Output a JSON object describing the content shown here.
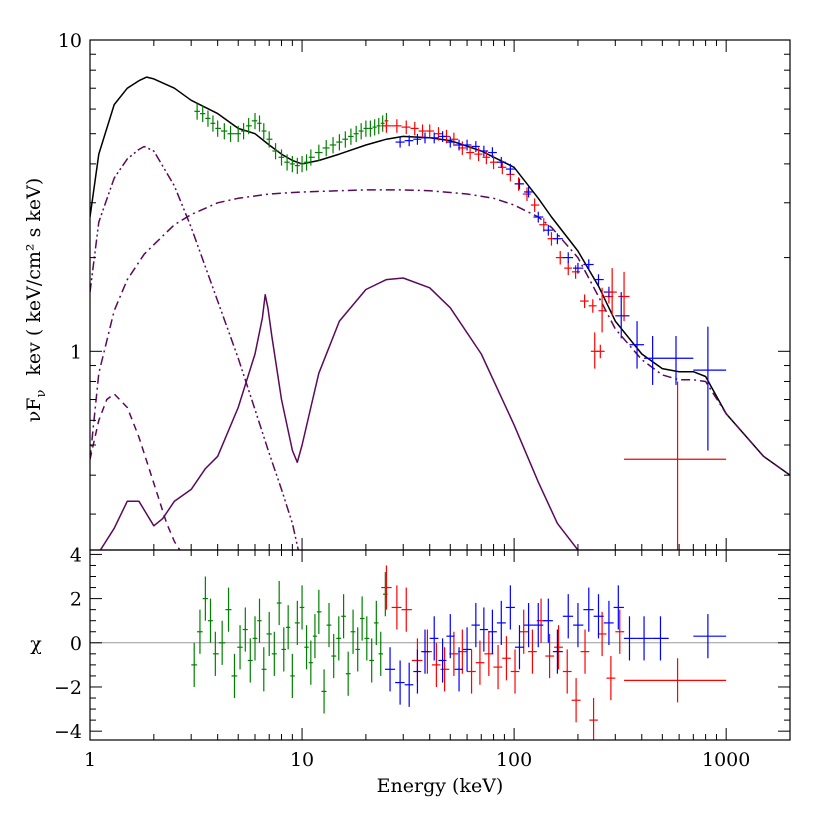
{
  "chart_data": [
    {
      "type": "line",
      "panel": "spectrum",
      "xscale": "log",
      "yscale": "log",
      "xlim": [
        1,
        2000
      ],
      "ylim": [
        0.23,
        10
      ],
      "ylabel": "νF_ν   kev ( keV/cm² s keV)",
      "ylabel_parts": {
        "nu": "ν",
        "f": "F",
        "sub": "ν",
        "rest": "kev ( keV/cm² s keV)"
      },
      "y_ticks": [
        1,
        10
      ],
      "y_tick_labels": [
        "1",
        "10"
      ],
      "colors": {
        "data_green": "#008000",
        "data_red": "#ff0000",
        "data_blue": "#0000ff",
        "model_total": "#000000",
        "component": "#5a0a5a"
      },
      "model_curves": [
        {
          "style": "solid",
          "color": "#000000",
          "x": [
            1,
            1.1,
            1.3,
            1.5,
            1.7,
            1.85,
            2.0,
            2.5,
            3.0,
            4.0,
            5.0,
            6.0,
            7.0,
            8.0,
            9.0,
            10,
            12,
            15,
            20,
            25,
            30,
            40,
            50,
            70,
            100,
            130,
            150,
            200,
            250,
            300,
            400,
            500,
            600,
            700,
            800,
            1000,
            1500,
            2000
          ],
          "y": [
            2.7,
            4.3,
            6.2,
            7.0,
            7.4,
            7.6,
            7.5,
            7.0,
            6.4,
            5.8,
            5.2,
            5.0,
            4.6,
            4.3,
            4.1,
            4.0,
            4.1,
            4.3,
            4.6,
            4.8,
            4.9,
            4.85,
            4.75,
            4.4,
            3.9,
            3.1,
            2.7,
            2.1,
            1.62,
            1.25,
            0.98,
            0.88,
            0.86,
            0.86,
            0.83,
            0.63,
            0.46,
            0.4
          ]
        },
        {
          "style": "dash-dot-dot",
          "color": "#5a0a5a",
          "x": [
            1,
            1.1,
            1.3,
            1.5,
            1.7,
            1.8,
            2.0,
            2.5,
            3.0,
            4.0,
            5.0,
            6.0,
            7.0,
            8.0,
            9.0,
            9.6
          ],
          "y": [
            1.55,
            2.6,
            3.6,
            4.15,
            4.45,
            4.55,
            4.4,
            3.4,
            2.5,
            1.45,
            0.95,
            0.65,
            0.47,
            0.36,
            0.28,
            0.23
          ]
        },
        {
          "style": "dash-dot",
          "color": "#5a0a5a",
          "x": [
            1,
            1.1,
            1.3,
            1.5,
            1.8,
            2.0,
            2.5,
            3.0,
            4.0,
            5.0,
            7.0,
            10,
            15,
            20,
            30,
            40,
            60,
            80,
            100,
            130,
            150,
            200,
            250,
            300,
            400,
            500,
            600,
            700,
            800,
            1000,
            1500,
            2000
          ],
          "y": [
            0.45,
            0.85,
            1.35,
            1.7,
            2.05,
            2.2,
            2.55,
            2.75,
            3.0,
            3.1,
            3.2,
            3.25,
            3.28,
            3.3,
            3.3,
            3.28,
            3.2,
            3.1,
            2.95,
            2.7,
            2.5,
            2.0,
            1.5,
            1.18,
            0.94,
            0.84,
            0.81,
            0.81,
            0.8,
            0.63,
            0.46,
            0.4
          ]
        },
        {
          "style": "dashed",
          "color": "#5a0a5a",
          "x": [
            1,
            1.1,
            1.2,
            1.3,
            1.5,
            1.7,
            1.9,
            2.1,
            2.3,
            2.5,
            2.65
          ],
          "y": [
            0.45,
            0.6,
            0.7,
            0.73,
            0.66,
            0.53,
            0.42,
            0.34,
            0.28,
            0.245,
            0.23
          ]
        },
        {
          "style": "solid",
          "color": "#5a0a5a",
          "x": [
            1.12,
            1.3,
            1.5,
            1.7,
            1.85,
            2.0,
            2.2,
            2.5,
            3.0,
            3.5,
            4.0,
            5.0,
            6.0,
            6.5,
            6.7,
            6.9,
            7.2,
            8.0,
            9.0,
            9.5,
            10,
            11,
            12,
            15,
            20,
            25,
            30,
            40,
            50,
            70,
            100,
            130,
            160,
            200
          ],
          "y": [
            0.23,
            0.27,
            0.33,
            0.33,
            0.3,
            0.275,
            0.29,
            0.33,
            0.36,
            0.42,
            0.46,
            0.66,
            0.98,
            1.28,
            1.52,
            1.38,
            1.12,
            0.7,
            0.48,
            0.44,
            0.5,
            0.66,
            0.85,
            1.25,
            1.58,
            1.7,
            1.72,
            1.6,
            1.38,
            0.98,
            0.58,
            0.38,
            0.28,
            0.23
          ]
        }
      ],
      "data_series": [
        {
          "color": "#008000",
          "x": [
            3.2,
            3.4,
            3.6,
            3.8,
            4.0,
            4.3,
            4.6,
            5.0,
            5.3,
            5.6,
            6.0,
            6.3,
            6.6,
            7.0,
            7.5,
            8.0,
            8.5,
            9.0,
            9.5,
            10,
            10.5,
            11,
            12,
            13,
            14,
            15,
            16,
            17,
            18,
            19,
            20,
            21,
            22,
            23,
            24,
            25
          ],
          "y": [
            5.9,
            5.8,
            5.6,
            5.4,
            5.2,
            5.1,
            5.0,
            5.0,
            5.1,
            5.3,
            5.5,
            5.4,
            5.1,
            4.8,
            4.4,
            4.2,
            4.05,
            4.0,
            3.95,
            4.0,
            4.05,
            4.2,
            4.35,
            4.5,
            4.6,
            4.7,
            4.8,
            4.9,
            5.0,
            5.1,
            5.2,
            5.2,
            5.25,
            5.3,
            5.4,
            5.5
          ],
          "ylo_frac": 0.06
        },
        {
          "color": "#ff0000",
          "x": [
            25,
            28,
            31,
            34,
            37,
            40,
            44,
            48,
            52,
            57,
            62,
            68,
            74,
            80,
            88,
            96,
            105,
            115,
            125,
            138,
            150,
            165,
            180,
            195,
            215,
            235,
            255,
            280
          ],
          "y": [
            5.3,
            5.3,
            5.25,
            5.2,
            5.1,
            5.1,
            5.0,
            4.9,
            4.8,
            4.5,
            4.35,
            4.3,
            4.2,
            4.05,
            3.9,
            3.7,
            3.45,
            3.2,
            2.95,
            2.55,
            2.3,
            2.0,
            1.85,
            1.8,
            1.45,
            1.4,
            1.0,
            1.5
          ],
          "ylo_frac": 0.05
        },
        {
          "color": "#0000ff",
          "x": [
            29,
            32,
            35,
            38,
            42,
            46,
            50,
            55,
            60,
            66,
            72,
            79,
            87,
            96,
            106,
            117,
            130,
            145,
            160,
            180,
            200,
            225,
            250,
            280
          ],
          "y": [
            4.7,
            4.75,
            4.8,
            4.85,
            4.85,
            4.9,
            4.7,
            4.6,
            4.6,
            4.55,
            4.4,
            4.35,
            4.05,
            3.85,
            3.45,
            3.25,
            2.7,
            2.45,
            2.3,
            2.0,
            1.85,
            1.9,
            1.7,
            1.55
          ],
          "ylo_frac": 0.04
        },
        {
          "color": "#ff0000",
          "x": [
            240,
            260,
            290,
            330,
            590
          ],
          "y": [
            1.0,
            1.35,
            1.55,
            1.5,
            0.45
          ],
          "xlo": [
            230,
            250,
            275,
            310,
            330
          ],
          "xhi": [
            250,
            270,
            305,
            350,
            1000
          ],
          "ylo": [
            0.88,
            1.15,
            1.3,
            1.25,
            0.23
          ],
          "yhi": [
            1.15,
            1.6,
            1.85,
            1.8,
            0.8
          ]
        },
        {
          "color": "#0000ff",
          "x": [
            320,
            380,
            450,
            580,
            820
          ],
          "y": [
            1.3,
            1.05,
            0.95,
            0.95,
            0.87
          ],
          "xlo": [
            300,
            350,
            410,
            490,
            700
          ],
          "xhi": [
            350,
            410,
            490,
            700,
            1000
          ],
          "ylo": [
            1.1,
            0.88,
            0.78,
            0.78,
            0.48
          ],
          "yhi": [
            1.55,
            1.25,
            1.12,
            1.12,
            1.2
          ]
        }
      ]
    },
    {
      "type": "scatter",
      "panel": "residuals",
      "xscale": "log",
      "xlim": [
        1,
        2000
      ],
      "ylim": [
        -4.4,
        4.2
      ],
      "xlabel": "Energy (keV)",
      "ylabel": "χ",
      "x_ticks": [
        1,
        10,
        100,
        1000
      ],
      "x_tick_labels": [
        "1",
        "10",
        "100",
        "1000"
      ],
      "y_ticks": [
        -4,
        -2,
        0,
        2,
        4
      ],
      "y_tick_labels": [
        "−4",
        "−2",
        "0",
        "2",
        "4"
      ],
      "zero_line": true,
      "colors": {
        "data_green": "#008000",
        "data_red": "#ff0000",
        "data_blue": "#0000ff",
        "zero_line": "#999999"
      },
      "series": [
        {
          "color": "#008000",
          "x": [
            3.1,
            3.3,
            3.5,
            3.7,
            3.9,
            4.2,
            4.5,
            4.8,
            5.1,
            5.4,
            5.7,
            6.0,
            6.3,
            6.6,
            7.0,
            7.4,
            7.8,
            8.2,
            8.6,
            9.0,
            9.5,
            10,
            10.5,
            11,
            11.5,
            12,
            12.7,
            13.4,
            14.1,
            14.9,
            15.7,
            16.5,
            17.4,
            18.3,
            19.2,
            20.2,
            21.3,
            22.4,
            23.5,
            24.7
          ],
          "y": [
            -1.0,
            0.5,
            2.0,
            1.0,
            -0.5,
            0.0,
            1.5,
            -1.5,
            -0.2,
            0.6,
            -0.8,
            0.2,
            1.0,
            -1.2,
            0.4,
            -0.5,
            1.8,
            -0.3,
            0.7,
            -1.5,
            0.9,
            1.6,
            -0.2,
            -0.9,
            0.3,
            1.4,
            -2.2,
            0.8,
            -0.6,
            0.2,
            1.2,
            -1.4,
            0.5,
            -0.3,
            1.1,
            0.2,
            -0.8,
            0.9,
            -0.5,
            2.2
          ]
        },
        {
          "color": "#ff0000",
          "x": [
            25,
            28,
            31,
            35,
            39,
            43,
            47,
            52,
            57,
            63,
            69,
            76,
            84,
            92,
            101,
            111,
            122,
            134,
            147,
            162,
            178,
            196,
            216,
            237,
            260,
            286,
            315
          ],
          "y": [
            2.5,
            1.6,
            1.5,
            -0.8,
            -0.4,
            -1.0,
            -1.2,
            -0.5,
            -0.4,
            -1.3,
            -0.9,
            -0.5,
            -1.1,
            -0.7,
            -1.3,
            0.5,
            -0.4,
            1.0,
            -0.6,
            -0.2,
            -1.3,
            -2.6,
            -0.4,
            -3.5,
            0.4,
            -1.6,
            0.5
          ]
        },
        {
          "color": "#0000ff",
          "x": [
            26,
            29,
            32,
            35,
            38,
            42,
            46,
            50,
            55,
            60,
            66,
            72,
            79,
            87,
            96,
            106,
            117,
            130,
            145,
            160,
            180,
            200,
            225,
            250,
            280,
            310,
            350,
            410,
            490
          ],
          "y": [
            -1.2,
            -1.8,
            -1.9,
            -1.3,
            -0.4,
            0.2,
            -0.8,
            0.3,
            -1.2,
            -0.3,
            0.8,
            0.6,
            0.5,
            0.9,
            1.6,
            -0.2,
            0.8,
            0.8,
            1.0,
            -0.4,
            1.2,
            0.8,
            1.5,
            1.2,
            0.9,
            1.6,
            0.2,
            0.2,
            0.2
          ],
          "yerr": 1.0
        },
        {
          "color": "#0000ff",
          "x": [
            820
          ],
          "y": [
            0.3
          ],
          "xlo": [
            700
          ],
          "xhi": [
            1000
          ],
          "ylo": [
            -0.7
          ],
          "yhi": [
            1.3
          ]
        },
        {
          "color": "#ff0000",
          "x": [
            590
          ],
          "y": [
            -1.7
          ],
          "xlo": [
            330
          ],
          "xhi": [
            1000
          ],
          "ylo": [
            -2.7
          ],
          "yhi": [
            -0.7
          ]
        }
      ]
    }
  ]
}
